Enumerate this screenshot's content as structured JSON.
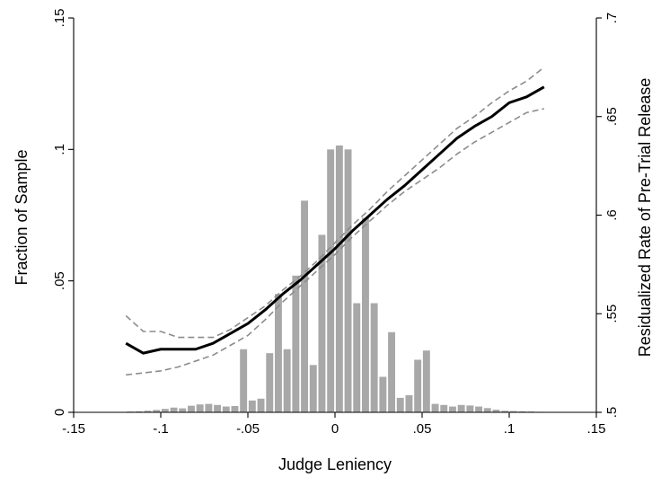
{
  "chart_data": {
    "type": "bar",
    "title": "",
    "xlabel": "Judge Leniency",
    "ylabel": "Fraction of Sample",
    "y2label": "Residualized Rate of Pre-Trial Release",
    "xlim": [
      -0.15,
      0.15
    ],
    "ylim": [
      0,
      0.15
    ],
    "y2lim": [
      0.5,
      0.7
    ],
    "x_ticks": [
      -0.15,
      -0.1,
      -0.05,
      0,
      0.05,
      0.1,
      0.15
    ],
    "x_tick_labels": [
      "-.15",
      "-.1",
      "-.05",
      "0",
      ".05",
      ".1",
      ".15"
    ],
    "y_ticks": [
      0,
      0.05,
      0.1,
      0.15
    ],
    "y_tick_labels": [
      "0",
      ".05",
      ".1",
      ".15"
    ],
    "y2_ticks": [
      0.5,
      0.55,
      0.6,
      0.65,
      0.7
    ],
    "y2_tick_labels": [
      ".5",
      ".55",
      ".6",
      ".65",
      ".7"
    ],
    "grid": false,
    "legend": "none",
    "colors": {
      "bars": "#a8a8a8",
      "fit": "#000000",
      "ci": "#8c8c8c"
    },
    "histogram": {
      "bin_width": 0.005,
      "x": [
        -0.1175,
        -0.1125,
        -0.1075,
        -0.1025,
        -0.0975,
        -0.0925,
        -0.0875,
        -0.0825,
        -0.0775,
        -0.0725,
        -0.0675,
        -0.0625,
        -0.0575,
        -0.0525,
        -0.0475,
        -0.0425,
        -0.0375,
        -0.0325,
        -0.0275,
        -0.0225,
        -0.0175,
        -0.0125,
        -0.0075,
        -0.0025,
        0.0025,
        0.0075,
        0.0125,
        0.0175,
        0.0225,
        0.0275,
        0.0325,
        0.0375,
        0.0425,
        0.0475,
        0.0525,
        0.0575,
        0.0625,
        0.0675,
        0.0725,
        0.0775,
        0.0825,
        0.0875,
        0.0925,
        0.0975,
        0.1025,
        0.1075,
        0.1125,
        0.1175
      ],
      "values": [
        0.0003,
        0.0004,
        0.0006,
        0.0009,
        0.0013,
        0.0018,
        0.0015,
        0.0025,
        0.003,
        0.0032,
        0.0028,
        0.0022,
        0.0024,
        0.024,
        0.0045,
        0.0052,
        0.0225,
        0.045,
        0.024,
        0.052,
        0.0805,
        0.018,
        0.0675,
        0.1,
        0.1015,
        0.1,
        0.0415,
        0.074,
        0.0415,
        0.0135,
        0.0305,
        0.0055,
        0.0065,
        0.02,
        0.0235,
        0.0032,
        0.0028,
        0.0022,
        0.0028,
        0.0026,
        0.0022,
        0.0016,
        0.001,
        0.0006,
        0.0005,
        0.0004,
        0.0003,
        0.0002
      ]
    },
    "series": [
      {
        "kind": "line",
        "axis": "right",
        "style": "solid",
        "x": [
          -0.12,
          -0.11,
          -0.1,
          -0.09,
          -0.08,
          -0.07,
          -0.06,
          -0.05,
          -0.04,
          -0.03,
          -0.02,
          -0.01,
          0,
          0.01,
          0.02,
          0.03,
          0.04,
          0.05,
          0.06,
          0.07,
          0.08,
          0.09,
          0.1,
          0.11,
          0.12
        ],
        "values": [
          0.535,
          0.53,
          0.532,
          0.532,
          0.532,
          0.535,
          0.54,
          0.545,
          0.552,
          0.56,
          0.567,
          0.575,
          0.583,
          0.592,
          0.6,
          0.608,
          0.615,
          0.623,
          0.631,
          0.639,
          0.645,
          0.65,
          0.657,
          0.66,
          0.665
        ]
      },
      {
        "kind": "line",
        "axis": "right",
        "style": "dashed",
        "x": [
          -0.12,
          -0.11,
          -0.1,
          -0.09,
          -0.08,
          -0.07,
          -0.06,
          -0.05,
          -0.04,
          -0.03,
          -0.02,
          -0.01,
          0,
          0.01,
          0.02,
          0.03,
          0.04,
          0.05,
          0.06,
          0.07,
          0.08,
          0.09,
          0.1,
          0.11,
          0.12
        ],
        "values": [
          0.549,
          0.541,
          0.541,
          0.538,
          0.538,
          0.538,
          0.542,
          0.548,
          0.554,
          0.562,
          0.569,
          0.577,
          0.586,
          0.595,
          0.603,
          0.612,
          0.62,
          0.628,
          0.636,
          0.644,
          0.65,
          0.657,
          0.663,
          0.668,
          0.675
        ]
      },
      {
        "kind": "line",
        "axis": "right",
        "style": "dashed",
        "x": [
          -0.12,
          -0.11,
          -0.1,
          -0.09,
          -0.08,
          -0.07,
          -0.06,
          -0.05,
          -0.04,
          -0.03,
          -0.02,
          -0.01,
          0,
          0.01,
          0.02,
          0.03,
          0.04,
          0.05,
          0.06,
          0.07,
          0.08,
          0.09,
          0.1,
          0.11,
          0.12
        ],
        "values": [
          0.519,
          0.52,
          0.521,
          0.523,
          0.526,
          0.529,
          0.534,
          0.539,
          0.547,
          0.556,
          0.564,
          0.572,
          0.58,
          0.589,
          0.597,
          0.605,
          0.612,
          0.618,
          0.624,
          0.631,
          0.637,
          0.642,
          0.647,
          0.652,
          0.654
        ]
      }
    ]
  }
}
